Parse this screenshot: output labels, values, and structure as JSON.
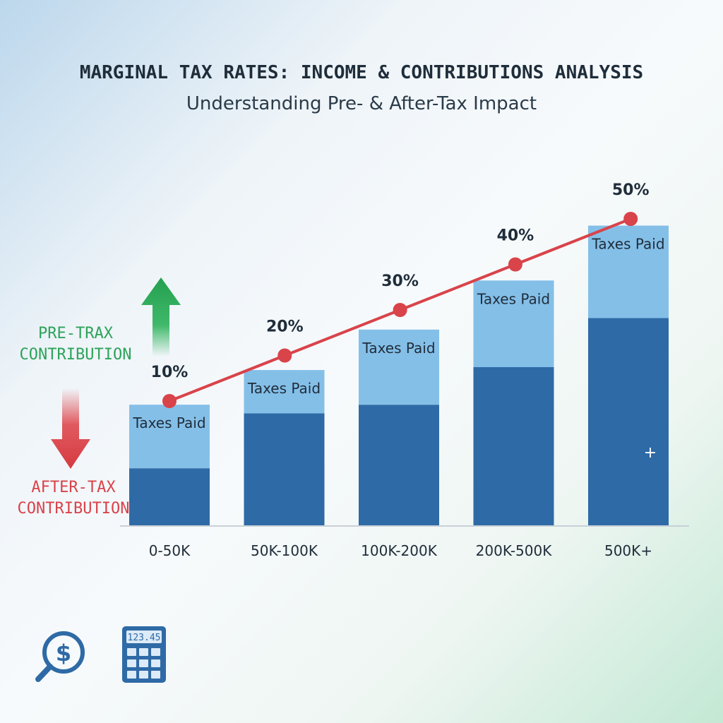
{
  "header": {
    "title": "MARGINAL TAX RATES: INCOME & CONTRIBUTIONS ANALYSIS",
    "subtitle": "Understanding Pre- & After-Tax Impact"
  },
  "side_labels": {
    "pre_tax_line1": "PRE-TRAX",
    "pre_tax_line2": "CONTRIBUTION",
    "after_tax_line1": "AFTER-TAX",
    "after_tax_line2": "CONTRIBUTION"
  },
  "icons": {
    "up_arrow": "arrow-up-icon",
    "down_arrow": "arrow-down-icon",
    "magnifier": "magnifier-dollar-icon",
    "calculator": "calculator-icon",
    "calculator_display": "123.45",
    "plus": "+"
  },
  "colors": {
    "bar_bottom": "#2e6aa6",
    "bar_top": "#84bfe8",
    "line": "#d9434a",
    "pre_tax": "#2ea35a",
    "after_tax": "#d9434a"
  },
  "chart_data": {
    "type": "bar",
    "stacked": true,
    "categories": [
      "0-50K",
      "50K-100K",
      "100K-200K",
      "200K-500K",
      "500K+"
    ],
    "series": [
      {
        "values": [
          20,
          39,
          42,
          55,
          72
        ]
      },
      {
        "name": "Taxes Paid",
        "values": [
          22,
          15,
          26,
          30,
          32
        ]
      }
    ],
    "ylim": [
      0,
      110
    ],
    "line_series": {
      "values": [
        10,
        20,
        30,
        40,
        50
      ],
      "labels": [
        "10%",
        "20%",
        "30%",
        "40%",
        "50%"
      ]
    },
    "grid": false
  }
}
